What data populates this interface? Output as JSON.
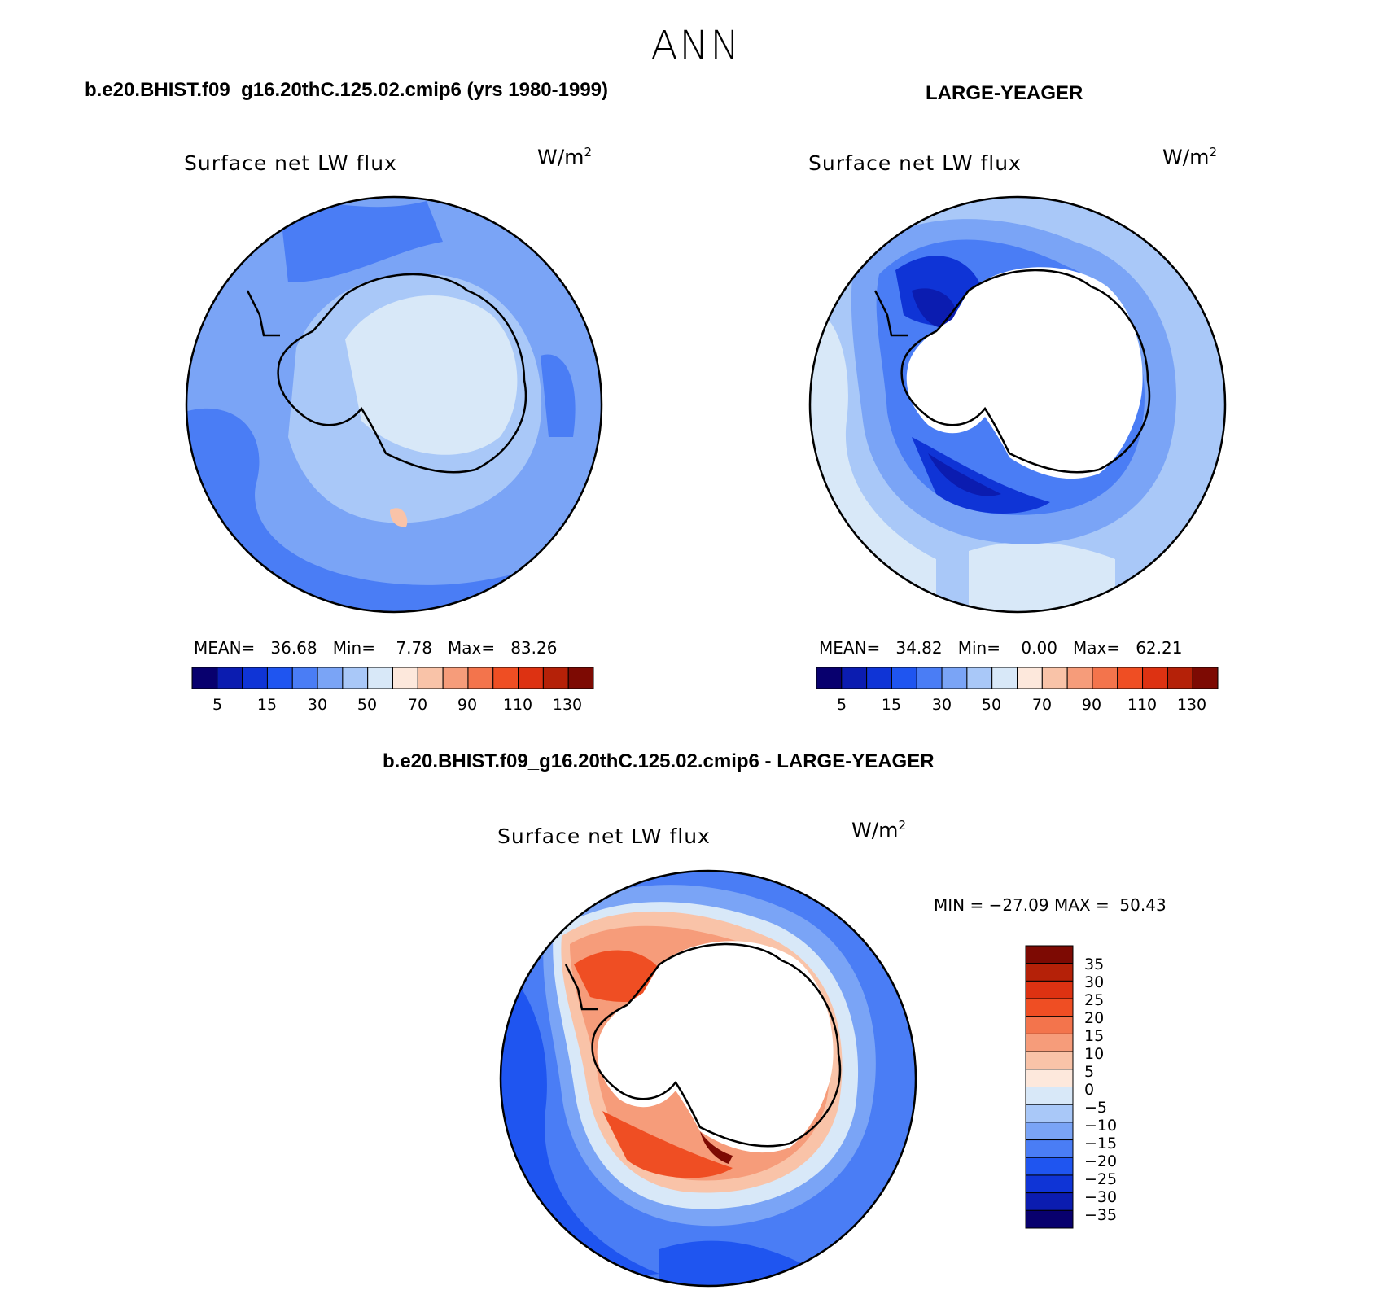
{
  "suptitle": "ANN",
  "panels": [
    {
      "case_title": "b.e20.BHIST.f09_g16.20thC.125.02.cmip6 (yrs 1980-1999)",
      "variable": "Surface net LW flux",
      "units": "W/m",
      "units_sup": "2",
      "mean_label": "MEAN=",
      "mean": "36.68",
      "min_label": "Min=",
      "min": "7.78",
      "max_label": "Max=",
      "max": "83.26"
    },
    {
      "case_title": "LARGE-YEAGER",
      "variable": "Surface net LW flux",
      "units": "W/m",
      "units_sup": "2",
      "mean_label": "MEAN=",
      "mean": "34.82",
      "min_label": "Min=",
      "min": "0.00",
      "max_label": "Max=",
      "max": "62.21"
    },
    {
      "case_title": "b.e20.BHIST.f09_g16.20thC.125.02.cmip6 - LARGE-YEAGER",
      "variable": "Surface net LW flux",
      "units": "W/m",
      "units_sup": "2",
      "minmax": "MIN = −27.09 MAX =  50.43"
    }
  ],
  "colorbar_abs": {
    "colors": [
      "#08006e",
      "#0b1cb0",
      "#0f34d6",
      "#1f55f0",
      "#4a7df5",
      "#7aa4f6",
      "#a9c8f8",
      "#d8e8f8",
      "#fde8dc",
      "#f9c3a8",
      "#f69c7a",
      "#f3744c",
      "#ef4e23",
      "#dd3212",
      "#b52108",
      "#7d0a03"
    ],
    "tick_labels": [
      "5",
      "15",
      "30",
      "50",
      "70",
      "90",
      "110",
      "130"
    ]
  },
  "colorbar_diff": {
    "colors": [
      "#7d0a03",
      "#b52108",
      "#dd3212",
      "#ef4e23",
      "#f3744c",
      "#f69c7a",
      "#f9c3a8",
      "#fde8dc",
      "#d8e8f8",
      "#a9c8f8",
      "#7aa4f6",
      "#4a7df5",
      "#1f55f0",
      "#0f34d6",
      "#0b1cb0",
      "#08006e"
    ],
    "tick_labels": [
      "35",
      "30",
      "25",
      "20",
      "15",
      "10",
      "5",
      "0",
      "−5",
      "−10",
      "−15",
      "−20",
      "−25",
      "−30",
      "−35"
    ]
  }
}
